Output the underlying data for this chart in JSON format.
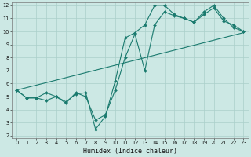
{
  "xlabel": "Humidex (Indice chaleur)",
  "bg_color": "#cce8e4",
  "grid_color": "#aacfca",
  "line_color": "#1a7a6e",
  "line1_x": [
    0,
    1,
    2,
    3,
    4,
    5,
    6,
    7,
    8,
    9,
    10,
    11,
    12,
    13,
    14,
    15,
    16,
    17,
    18,
    19,
    20,
    21,
    22,
    23
  ],
  "line1_y": [
    5.5,
    4.9,
    4.9,
    4.7,
    5.0,
    4.6,
    5.2,
    5.3,
    2.5,
    3.5,
    6.2,
    9.5,
    9.9,
    10.5,
    12.0,
    12.0,
    11.3,
    11.0,
    10.7,
    11.5,
    12.0,
    11.0,
    10.3,
    10.0
  ],
  "line2_x": [
    0,
    1,
    2,
    3,
    4,
    5,
    6,
    7,
    8,
    9,
    10,
    11,
    12,
    13,
    14,
    15,
    16,
    17,
    18,
    19,
    20,
    21,
    22,
    23
  ],
  "line2_y": [
    5.5,
    4.9,
    4.9,
    5.3,
    5.0,
    4.5,
    5.3,
    5.0,
    3.2,
    3.6,
    5.5,
    8.0,
    9.8,
    7.0,
    10.5,
    11.5,
    11.2,
    11.0,
    10.7,
    11.3,
    11.8,
    10.8,
    10.5,
    10.0
  ],
  "line3_x": [
    0,
    23
  ],
  "line3_y": [
    5.5,
    9.9
  ],
  "ylim": [
    1.8,
    12.2
  ],
  "xlim": [
    -0.5,
    23.5
  ],
  "yticks": [
    2,
    3,
    4,
    5,
    6,
    7,
    8,
    9,
    10,
    11,
    12
  ],
  "xticks": [
    0,
    1,
    2,
    3,
    4,
    5,
    6,
    7,
    8,
    9,
    10,
    11,
    12,
    13,
    14,
    15,
    16,
    17,
    18,
    19,
    20,
    21,
    22,
    23
  ],
  "tick_fontsize": 4.8,
  "xlabel_fontsize": 6.0,
  "marker_size": 2.0,
  "line_width": 0.8
}
